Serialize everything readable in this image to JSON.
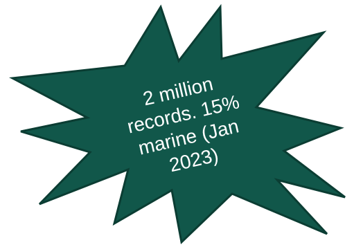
{
  "callout": {
    "lines": [
      "2 million",
      "records. 15%",
      "marine (Jan",
      "2023)"
    ]
  },
  "colors": {
    "fill": "#11574a",
    "stroke": "#0b3d33",
    "text": "#ffffff"
  }
}
